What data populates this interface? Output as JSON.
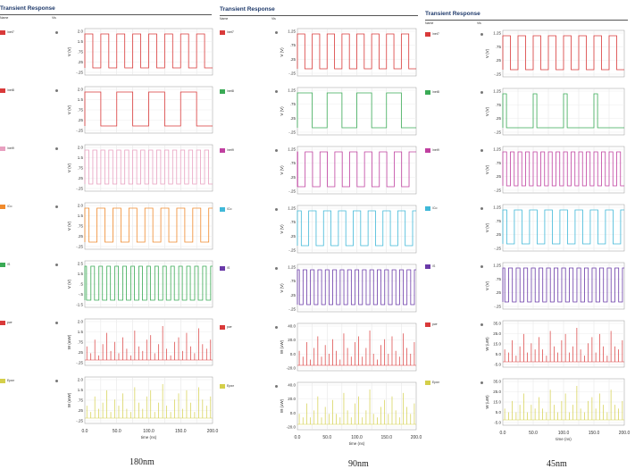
{
  "chart_data": [
    {
      "type": "line",
      "header": "Transient Response",
      "col_name": "Name",
      "col_vis": "Vis",
      "caption": "180nm",
      "signals": [
        {
          "name": "/net7",
          "color": "#d93a3a",
          "ylabel": "V (V)",
          "yticks": [
            "2.0",
            "1.5",
            ".75",
            ".25",
            "-.25"
          ],
          "kind": "square",
          "period": 25,
          "duty": 0.5,
          "phase": 0,
          "hi": 1.8,
          "lo": 0
        },
        {
          "name": "/net8",
          "color": "#d93a3a",
          "ylabel": "V (V)",
          "yticks": [
            "2.0",
            "1.5",
            ".75",
            ".25",
            "-.25"
          ],
          "kind": "square",
          "period": 50,
          "duty": 0.5,
          "phase": 0,
          "hi": 1.8,
          "lo": 0
        },
        {
          "name": "/net9",
          "color": "#e8a0c0",
          "ylabel": "V (V)",
          "yticks": [
            "2.0",
            "1.5",
            ".75",
            ".25",
            "-.25"
          ],
          "kind": "square",
          "period": 12.5,
          "duty": 0.5,
          "phase": 0,
          "hi": 1.8,
          "lo": 0
        },
        {
          "name": "/Co",
          "color": "#f08a2c",
          "ylabel": "V (V)",
          "yticks": [
            "2.0",
            "1.5",
            ".75",
            ".25",
            "-.25"
          ],
          "kind": "square",
          "period": 25,
          "duty": 0.5,
          "phase": 6,
          "hi": 1.8,
          "lo": 0
        },
        {
          "name": "/S",
          "color": "#3aaa55",
          "ylabel": "V (V)",
          "yticks": [
            "2.5",
            "1.5",
            ".5",
            "-.5",
            "-1.5"
          ],
          "kind": "square",
          "period": 12.5,
          "duty": 0.45,
          "phase": 3,
          "hi": 1.8,
          "lo": 0
        },
        {
          "name": "pwr",
          "color": "#d93a3a",
          "ylabel": "W (mW)",
          "yticks": [
            "2.0",
            "1.5",
            ".75",
            ".25",
            "-.25"
          ],
          "kind": "spikes",
          "amps": [
            0.6,
            0.3,
            0.9,
            0.2,
            0.7,
            1.2,
            0.4,
            0.8,
            0.3,
            1.0,
            0.5,
            0.2,
            1.3,
            0.6,
            0.4,
            0.9,
            1.1,
            0.3,
            0.7,
            1.5,
            0.5,
            0.2,
            0.8,
            1.0,
            0.4,
            1.2,
            0.6,
            0.3,
            1.4,
            0.7,
            0.5,
            0.9
          ]
        },
        {
          "name": "Epwr",
          "color": "#d4cf4a",
          "ylabel": "W (mW)",
          "yticks": [
            "2.0",
            "1.5",
            ".75",
            ".25",
            "-.25"
          ],
          "kind": "spikes",
          "amps": [
            0.4,
            0.2,
            0.7,
            0.3,
            0.5,
            0.9,
            0.2,
            0.6,
            0.4,
            0.8,
            0.3,
            0.2,
            1.0,
            0.5,
            0.3,
            0.7,
            0.9,
            0.2,
            0.5,
            1.1,
            0.4,
            0.2,
            0.6,
            0.8,
            0.3,
            0.9,
            0.5,
            0.2,
            1.0,
            0.6,
            0.4,
            0.7
          ]
        }
      ],
      "xticks": [
        "0.0",
        "50.0",
        "100.0",
        "150.0",
        "200.0"
      ],
      "xlabel": "time (ns)",
      "xlim": [
        0,
        200
      ]
    },
    {
      "type": "line",
      "header": "Transient Response",
      "col_name": "Name",
      "col_vis": "Vis",
      "caption": "90nm",
      "signals": [
        {
          "name": "/net7",
          "color": "#d93a3a",
          "ylabel": "V (V)",
          "yticks": [
            "1.25",
            ".75",
            ".25",
            "-.25"
          ],
          "kind": "square",
          "period": 25,
          "duty": 0.5,
          "phase": 0,
          "hi": 1.1,
          "lo": 0
        },
        {
          "name": "/net8",
          "color": "#3aaa55",
          "ylabel": "V (V)",
          "yticks": [
            "1.25",
            ".75",
            ".25",
            "-.25"
          ],
          "kind": "square",
          "period": 50,
          "duty": 0.5,
          "phase": 0,
          "hi": 1.1,
          "lo": 0
        },
        {
          "name": "/net9",
          "color": "#c040a0",
          "ylabel": "V (V)",
          "yticks": [
            "1.25",
            ".75",
            ".25",
            "-.25"
          ],
          "kind": "square",
          "period": 25,
          "duty": 0.5,
          "phase": 12,
          "hi": 1.1,
          "lo": 0
        },
        {
          "name": "/Co",
          "color": "#40b8d8",
          "ylabel": "V (V)",
          "yticks": [
            "1.25",
            ".75",
            ".25",
            "-.25"
          ],
          "kind": "square",
          "period": 25,
          "duty": 0.5,
          "phase": 6,
          "hi": 1.1,
          "lo": 0
        },
        {
          "name": "/S",
          "color": "#6a3aa8",
          "ylabel": "V (V)",
          "yticks": [
            "1.25",
            ".75",
            ".25",
            "-.25"
          ],
          "kind": "square",
          "period": 12.5,
          "duty": 0.5,
          "phase": 3,
          "hi": 1.1,
          "lo": 0
        },
        {
          "name": "pwr",
          "color": "#d93a3a",
          "ylabel": "W (uW)",
          "yticks": [
            "40.0",
            "20.0",
            "0.0",
            "-20.0"
          ],
          "kind": "spikes",
          "amps": [
            0.5,
            0.3,
            0.8,
            0.2,
            0.6,
            1.0,
            0.3,
            0.7,
            0.4,
            0.9,
            0.5,
            0.2,
            1.1,
            0.6,
            0.3,
            0.8,
            1.0,
            0.3,
            0.6,
            1.2,
            0.4,
            0.2,
            0.7,
            0.9,
            0.4,
            1.0,
            0.5,
            0.3,
            1.1,
            0.6,
            0.4,
            0.8
          ]
        },
        {
          "name": "Epwr",
          "color": "#d4cf4a",
          "ylabel": "W (uW)",
          "yticks": [
            "40.0",
            "20.0",
            "0.0",
            "-20.0"
          ],
          "kind": "spikes",
          "amps": [
            0.3,
            0.2,
            0.6,
            0.2,
            0.4,
            0.8,
            0.2,
            0.5,
            0.3,
            0.7,
            0.3,
            0.2,
            0.9,
            0.4,
            0.2,
            0.6,
            0.8,
            0.2,
            0.4,
            1.0,
            0.3,
            0.2,
            0.5,
            0.7,
            0.3,
            0.8,
            0.4,
            0.2,
            0.9,
            0.5,
            0.3,
            0.6
          ]
        }
      ],
      "xticks": [
        "0.0",
        "50.0",
        "100.0",
        "150.0",
        "200.0"
      ],
      "xlabel": "time (ns)",
      "xlim": [
        0,
        200
      ]
    },
    {
      "type": "line",
      "header": "Transient Response",
      "col_name": "Name",
      "col_vis": "Vis",
      "caption": "45nm",
      "signals": [
        {
          "name": "/net7",
          "color": "#d93a3a",
          "ylabel": "V (V)",
          "yticks": [
            "1.25",
            ".75",
            ".25",
            "-.25"
          ],
          "kind": "square",
          "period": 25,
          "duty": 0.5,
          "phase": 0,
          "hi": 1.0,
          "lo": 0
        },
        {
          "name": "/net8",
          "color": "#3aaa55",
          "ylabel": "V (V)",
          "yticks": [
            "1.25",
            ".75",
            ".25",
            "-.25"
          ],
          "kind": "square",
          "period": 50,
          "duty": 0.12,
          "phase": 0,
          "hi": 1.0,
          "lo": 0
        },
        {
          "name": "/net9",
          "color": "#c040a0",
          "ylabel": "V (V)",
          "yticks": [
            "1.25",
            ".75",
            ".25",
            "-.25"
          ],
          "kind": "square",
          "period": 12.5,
          "duty": 0.5,
          "phase": 0,
          "hi": 1.0,
          "lo": 0
        },
        {
          "name": "/Co",
          "color": "#40b8d8",
          "ylabel": "V (V)",
          "yticks": [
            "1.25",
            ".75",
            ".25",
            "-.25"
          ],
          "kind": "square",
          "period": 25,
          "duty": 0.5,
          "phase": 6,
          "hi": 1.0,
          "lo": 0
        },
        {
          "name": "/S",
          "color": "#6a3aa8",
          "ylabel": "V (V)",
          "yticks": [
            "1.25",
            ".75",
            ".25",
            "-.25"
          ],
          "kind": "square",
          "period": 12.5,
          "duty": 0.5,
          "phase": 3,
          "hi": 1.0,
          "lo": 0
        },
        {
          "name": "pwr",
          "color": "#d93a3a",
          "ylabel": "W (uW)",
          "yticks": [
            "35.0",
            "25.0",
            "15.0",
            "5.0",
            "-5.0"
          ],
          "kind": "spikes",
          "amps": [
            0.4,
            0.3,
            0.7,
            0.2,
            0.5,
            0.9,
            0.3,
            0.6,
            0.4,
            0.8,
            0.4,
            0.2,
            1.0,
            0.5,
            0.3,
            0.7,
            0.9,
            0.3,
            0.5,
            1.1,
            0.4,
            0.2,
            0.6,
            0.8,
            0.3,
            0.9,
            0.5,
            0.2,
            1.0,
            0.5,
            0.4,
            0.7
          ]
        },
        {
          "name": "Epwr",
          "color": "#d4cf4a",
          "ylabel": "W (uW)",
          "yticks": [
            "35.0",
            "25.0",
            "15.0",
            "5.0",
            "-5.0"
          ],
          "kind": "spikes",
          "amps": [
            0.3,
            0.2,
            0.5,
            0.2,
            0.4,
            0.7,
            0.2,
            0.4,
            0.3,
            0.6,
            0.3,
            0.2,
            0.8,
            0.4,
            0.2,
            0.5,
            0.7,
            0.2,
            0.4,
            0.9,
            0.3,
            0.2,
            0.5,
            0.6,
            0.3,
            0.7,
            0.4,
            0.2,
            0.8,
            0.4,
            0.3,
            0.5
          ]
        }
      ],
      "xticks": [
        "0.0",
        "50.0",
        "100.0",
        "150.0",
        "200.0"
      ],
      "xlabel": "time (ns)",
      "xlim": [
        0,
        200
      ]
    }
  ]
}
